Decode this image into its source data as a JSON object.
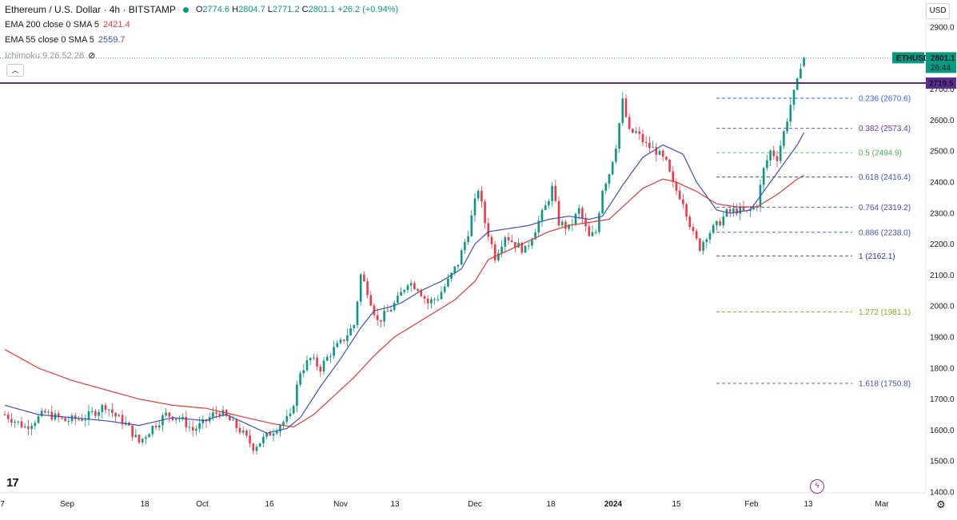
{
  "header": {
    "title": "Ethereum / U.S. Dollar · 4h · BITSTAMP",
    "ohlc": {
      "o_label": "O",
      "o": "2774.6",
      "h_label": "H",
      "h": "2804.7",
      "l_label": "L",
      "l": "2771.2",
      "c_label": "C",
      "c": "2801.1",
      "change": "+26.2 (+0.94%)"
    },
    "indicators": [
      {
        "label": "EMA 200 close 0 SMA 5",
        "value": "2421.4",
        "color": "#e53935"
      },
      {
        "label": "EMA 55 close 0 SMA 5",
        "value": "2559.7",
        "color": "#3f51b5"
      },
      {
        "label": "Ichimoku 9 26 52 26",
        "value": ""
      }
    ]
  },
  "currency_button": "USD",
  "price_badge": {
    "symbol": "ETHUSD",
    "price": "2801.1",
    "countdown": "26:44",
    "color": "#089981"
  },
  "level_line": {
    "value": 2719.5,
    "label": "2719.5",
    "color": "#5b2c91"
  },
  "colors": {
    "up": "#089981",
    "down": "#f23645",
    "ema200": "#e53935",
    "ema55": "#3f51b5"
  },
  "chart_data": {
    "type": "candlestick",
    "symbol": "ETHUSD",
    "timeframe": "4h",
    "ylim": [
      1370,
      2930
    ],
    "y_ticks": [
      1400,
      1500,
      1600,
      1700,
      1800,
      1900,
      2000,
      2100,
      2200,
      2300,
      2400,
      2500,
      2600,
      2700,
      2800,
      2900
    ],
    "x_ticks": [
      "7",
      "Sep",
      "18",
      "Oct",
      "16",
      "Nov",
      "13",
      "Dec",
      "18",
      "2024",
      "15",
      "Feb",
      "13",
      "Mar"
    ],
    "x_tick_bold": [
      "2024"
    ],
    "price_path": [
      [
        0,
        1650
      ],
      [
        6,
        1610
      ],
      [
        12,
        1655
      ],
      [
        18,
        1630
      ],
      [
        24,
        1640
      ],
      [
        30,
        1680
      ],
      [
        33,
        1645
      ],
      [
        36,
        1620
      ],
      [
        40,
        1560
      ],
      [
        44,
        1610
      ],
      [
        48,
        1650
      ],
      [
        52,
        1640
      ],
      [
        56,
        1600
      ],
      [
        59,
        1620
      ],
      [
        62,
        1650
      ],
      [
        64,
        1660
      ],
      [
        66,
        1640
      ],
      [
        70,
        1600
      ],
      [
        74,
        1545
      ],
      [
        78,
        1580
      ],
      [
        82,
        1620
      ],
      [
        85,
        1640
      ],
      [
        88,
        1790
      ],
      [
        91,
        1830
      ],
      [
        94,
        1800
      ],
      [
        97,
        1850
      ],
      [
        100,
        1880
      ],
      [
        104,
        1940
      ],
      [
        106,
        2100
      ],
      [
        108,
        2050
      ],
      [
        111,
        1950
      ],
      [
        114,
        1980
      ],
      [
        117,
        2020
      ],
      [
        120,
        2080
      ],
      [
        123,
        2060
      ],
      [
        126,
        2010
      ],
      [
        129,
        2030
      ],
      [
        132,
        2080
      ],
      [
        135,
        2140
      ],
      [
        138,
        2240
      ],
      [
        141,
        2380
      ],
      [
        143,
        2270
      ],
      [
        146,
        2160
      ],
      [
        149,
        2230
      ],
      [
        152,
        2200
      ],
      [
        155,
        2180
      ],
      [
        158,
        2250
      ],
      [
        161,
        2320
      ],
      [
        163,
        2380
      ],
      [
        165,
        2270
      ],
      [
        168,
        2250
      ],
      [
        171,
        2310
      ],
      [
        174,
        2220
      ],
      [
        176,
        2240
      ],
      [
        178,
        2380
      ],
      [
        180,
        2430
      ],
      [
        182,
        2520
      ],
      [
        184,
        2660
      ],
      [
        186,
        2560
      ],
      [
        188,
        2560
      ],
      [
        191,
        2520
      ],
      [
        194,
        2500
      ],
      [
        197,
        2460
      ],
      [
        199,
        2390
      ],
      [
        202,
        2340
      ],
      [
        205,
        2230
      ],
      [
        207,
        2190
      ],
      [
        209,
        2230
      ],
      [
        212,
        2260
      ],
      [
        215,
        2300
      ],
      [
        218,
        2310
      ],
      [
        221,
        2300
      ],
      [
        224,
        2330
      ],
      [
        226,
        2440
      ],
      [
        228,
        2500
      ],
      [
        230,
        2480
      ],
      [
        232,
        2560
      ],
      [
        234,
        2650
      ],
      [
        236,
        2720
      ],
      [
        237,
        2780
      ],
      [
        238,
        2801.1
      ]
    ],
    "ema55": [
      [
        0,
        1680
      ],
      [
        10,
        1650
      ],
      [
        20,
        1640
      ],
      [
        30,
        1630
      ],
      [
        40,
        1615
      ],
      [
        50,
        1640
      ],
      [
        60,
        1630
      ],
      [
        62,
        1640
      ],
      [
        66,
        1650
      ],
      [
        72,
        1620
      ],
      [
        78,
        1590
      ],
      [
        84,
        1605
      ],
      [
        88,
        1640
      ],
      [
        94,
        1740
      ],
      [
        100,
        1830
      ],
      [
        106,
        1930
      ],
      [
        110,
        1985
      ],
      [
        114,
        1995
      ],
      [
        118,
        2010
      ],
      [
        124,
        2050
      ],
      [
        130,
        2080
      ],
      [
        136,
        2120
      ],
      [
        140,
        2200
      ],
      [
        144,
        2240
      ],
      [
        150,
        2250
      ],
      [
        156,
        2260
      ],
      [
        162,
        2280
      ],
      [
        168,
        2290
      ],
      [
        174,
        2280
      ],
      [
        178,
        2290
      ],
      [
        184,
        2390
      ],
      [
        190,
        2480
      ],
      [
        196,
        2520
      ],
      [
        202,
        2490
      ],
      [
        206,
        2400
      ],
      [
        212,
        2310
      ],
      [
        216,
        2300
      ],
      [
        222,
        2310
      ],
      [
        228,
        2400
      ],
      [
        232,
        2460
      ],
      [
        236,
        2520
      ],
      [
        238,
        2559.7
      ]
    ],
    "ema200": [
      [
        0,
        1860
      ],
      [
        10,
        1800
      ],
      [
        20,
        1760
      ],
      [
        30,
        1730
      ],
      [
        40,
        1700
      ],
      [
        50,
        1680
      ],
      [
        60,
        1670
      ],
      [
        70,
        1645
      ],
      [
        80,
        1620
      ],
      [
        86,
        1610
      ],
      [
        92,
        1650
      ],
      [
        98,
        1710
      ],
      [
        104,
        1770
      ],
      [
        110,
        1840
      ],
      [
        116,
        1900
      ],
      [
        122,
        1940
      ],
      [
        128,
        1980
      ],
      [
        134,
        2020
      ],
      [
        140,
        2080
      ],
      [
        144,
        2150
      ],
      [
        150,
        2180
      ],
      [
        156,
        2210
      ],
      [
        162,
        2240
      ],
      [
        168,
        2260
      ],
      [
        174,
        2270
      ],
      [
        180,
        2280
      ],
      [
        184,
        2320
      ],
      [
        190,
        2380
      ],
      [
        196,
        2410
      ],
      [
        200,
        2400
      ],
      [
        206,
        2370
      ],
      [
        212,
        2330
      ],
      [
        218,
        2320
      ],
      [
        224,
        2320
      ],
      [
        230,
        2360
      ],
      [
        236,
        2410
      ],
      [
        238,
        2421.4
      ]
    ],
    "fibonacci": [
      {
        "ratio": "0.236",
        "value": 2670.6,
        "label": "0.236 (2670.6)",
        "color": "#2962ff"
      },
      {
        "ratio": "0.382",
        "value": 2573.4,
        "label": "0.382 (2573.4)",
        "color": "#673ab7"
      },
      {
        "ratio": "0.5",
        "value": 2494.9,
        "label": "0.5 (2494.9)",
        "color": "#4caf50"
      },
      {
        "ratio": "0.618",
        "value": 2416.4,
        "label": "0.618 (2416.4)",
        "color": "#3f51b5"
      },
      {
        "ratio": "0.764",
        "value": 2319.2,
        "label": "0.764 (2319.2)",
        "color": "#3f51b5"
      },
      {
        "ratio": "0.886",
        "value": 2238.0,
        "label": "0.886 (2238.0)",
        "color": "#3f51b5"
      },
      {
        "ratio": "1",
        "value": 2162.1,
        "label": "1 (2162.1)",
        "color": "#283593"
      },
      {
        "ratio": "1.272",
        "value": 1981.1,
        "label": "1.272 (1981.1)",
        "color": "#9e9d24"
      },
      {
        "ratio": "1.618",
        "value": 1750.8,
        "label": "1.618 (1750.8)",
        "color": "#3f51b5"
      }
    ]
  }
}
